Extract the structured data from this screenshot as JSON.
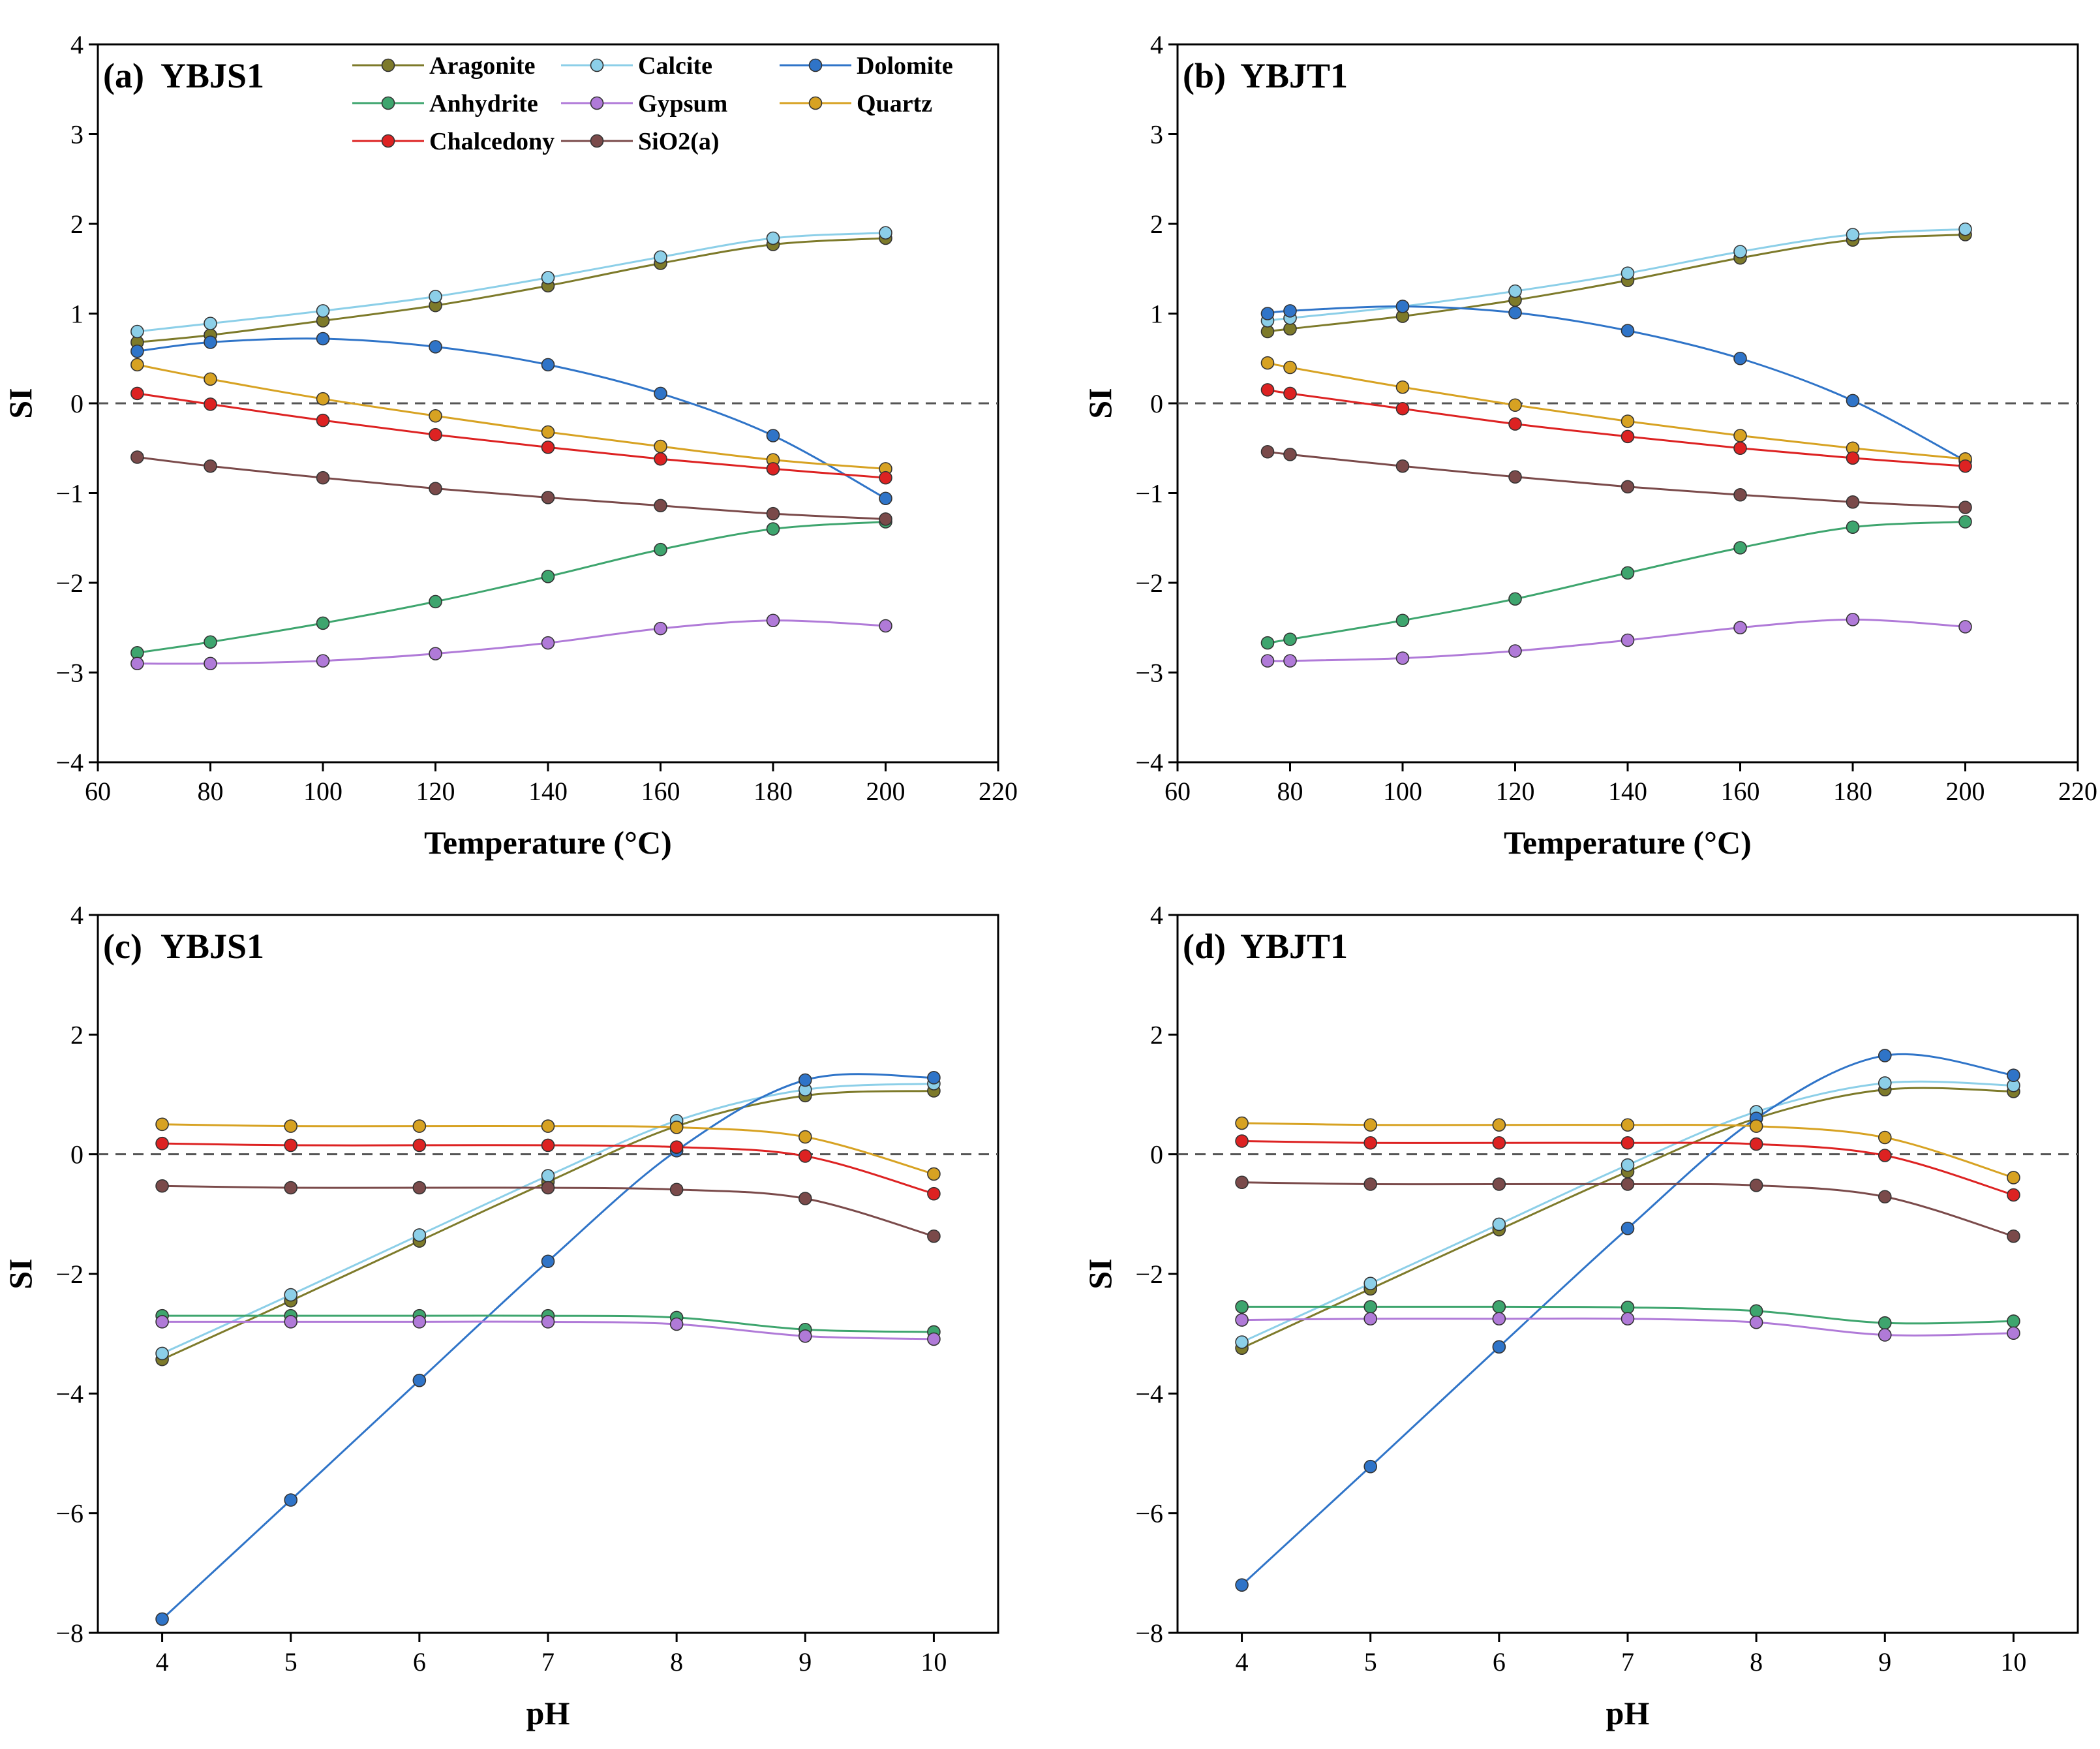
{
  "chart_data": [
    {
      "type": "line",
      "panel_label": "(a)",
      "title": "YBJS1",
      "xlabel": "Temperature (°C)",
      "ylabel": "SI",
      "xlim": [
        60,
        220
      ],
      "ylim": [
        -4,
        4
      ],
      "xticks": [
        60,
        80,
        100,
        120,
        140,
        160,
        180,
        200,
        220
      ],
      "yticks": [
        -4,
        -3,
        -2,
        -1,
        0,
        1,
        2,
        3,
        4
      ],
      "x": [
        67,
        80,
        100,
        120,
        140,
        160,
        180,
        200
      ],
      "reference_line": 0,
      "legend_position": "top",
      "series": [
        {
          "name": "Aragonite",
          "values": [
            0.68,
            0.76,
            0.92,
            1.09,
            1.31,
            1.56,
            1.77,
            1.84
          ]
        },
        {
          "name": "Calcite",
          "values": [
            0.8,
            0.89,
            1.03,
            1.19,
            1.4,
            1.63,
            1.84,
            1.9
          ]
        },
        {
          "name": "Dolomite",
          "values": [
            0.58,
            0.68,
            0.72,
            0.63,
            0.43,
            0.11,
            -0.36,
            -1.06
          ]
        },
        {
          "name": "Anhydrite",
          "values": [
            -2.78,
            -2.66,
            -2.45,
            -2.21,
            -1.93,
            -1.63,
            -1.4,
            -1.32
          ]
        },
        {
          "name": "Gypsum",
          "values": [
            -2.9,
            -2.9,
            -2.87,
            -2.79,
            -2.67,
            -2.51,
            -2.42,
            -2.48
          ]
        },
        {
          "name": "Quartz",
          "values": [
            0.43,
            0.27,
            0.05,
            -0.14,
            -0.32,
            -0.48,
            -0.63,
            -0.73
          ]
        },
        {
          "name": "Chalcedony",
          "values": [
            0.11,
            -0.01,
            -0.19,
            -0.35,
            -0.49,
            -0.62,
            -0.73,
            -0.83
          ]
        },
        {
          "name": "SiO2(a)",
          "values": [
            -0.6,
            -0.7,
            -0.83,
            -0.95,
            -1.05,
            -1.14,
            -1.23,
            -1.29
          ]
        }
      ]
    },
    {
      "type": "line",
      "panel_label": "(b)",
      "title": "YBJT1",
      "xlabel": "Temperature (°C)",
      "ylabel": "SI",
      "xlim": [
        60,
        220
      ],
      "ylim": [
        -4,
        4
      ],
      "xticks": [
        60,
        80,
        100,
        120,
        140,
        160,
        180,
        200,
        220
      ],
      "yticks": [
        -4,
        -3,
        -2,
        -1,
        0,
        1,
        2,
        3,
        4
      ],
      "x": [
        76,
        80,
        100,
        120,
        140,
        160,
        180,
        200
      ],
      "reference_line": 0,
      "series": [
        {
          "name": "Aragonite",
          "values": [
            0.8,
            0.83,
            0.97,
            1.15,
            1.37,
            1.62,
            1.82,
            1.88
          ]
        },
        {
          "name": "Calcite",
          "values": [
            0.92,
            0.95,
            1.08,
            1.25,
            1.45,
            1.69,
            1.88,
            1.94
          ]
        },
        {
          "name": "Dolomite",
          "values": [
            1.0,
            1.03,
            1.08,
            1.01,
            0.81,
            0.5,
            0.03,
            -0.64
          ]
        },
        {
          "name": "Anhydrite",
          "values": [
            -2.67,
            -2.63,
            -2.42,
            -2.18,
            -1.89,
            -1.61,
            -1.38,
            -1.32
          ]
        },
        {
          "name": "Gypsum",
          "values": [
            -2.87,
            -2.87,
            -2.84,
            -2.76,
            -2.64,
            -2.5,
            -2.41,
            -2.49
          ]
        },
        {
          "name": "Quartz",
          "values": [
            0.45,
            0.4,
            0.18,
            -0.02,
            -0.2,
            -0.36,
            -0.5,
            -0.62
          ]
        },
        {
          "name": "Chalcedony",
          "values": [
            0.15,
            0.11,
            -0.06,
            -0.23,
            -0.37,
            -0.5,
            -0.61,
            -0.7
          ]
        },
        {
          "name": "SiO2(a)",
          "values": [
            -0.54,
            -0.57,
            -0.7,
            -0.82,
            -0.93,
            -1.02,
            -1.1,
            -1.16
          ]
        }
      ]
    },
    {
      "type": "line",
      "panel_label": "(c)",
      "title": "YBJS1",
      "xlabel": "pH",
      "ylabel": "SI",
      "xlim": [
        3.5,
        10.5
      ],
      "ylim": [
        -8,
        4
      ],
      "xticks": [
        4,
        5,
        6,
        7,
        8,
        9,
        10
      ],
      "yticks": [
        -8,
        -6,
        -4,
        -2,
        0,
        2,
        4
      ],
      "x": [
        4,
        5,
        6,
        7,
        8,
        9,
        10
      ],
      "reference_line": 0,
      "series": [
        {
          "name": "Aragonite",
          "values": [
            -3.43,
            -2.45,
            -1.45,
            -0.46,
            0.47,
            0.98,
            1.06
          ]
        },
        {
          "name": "Calcite",
          "values": [
            -3.33,
            -2.35,
            -1.35,
            -0.36,
            0.56,
            1.08,
            1.18
          ]
        },
        {
          "name": "Dolomite",
          "values": [
            -7.77,
            -5.78,
            -3.78,
            -1.79,
            0.06,
            1.24,
            1.28
          ]
        },
        {
          "name": "Anhydrite",
          "values": [
            -2.7,
            -2.7,
            -2.7,
            -2.7,
            -2.73,
            -2.93,
            -2.97
          ]
        },
        {
          "name": "Gypsum",
          "values": [
            -2.8,
            -2.8,
            -2.8,
            -2.8,
            -2.84,
            -3.04,
            -3.09
          ]
        },
        {
          "name": "Quartz",
          "values": [
            0.5,
            0.47,
            0.47,
            0.47,
            0.45,
            0.29,
            -0.33
          ]
        },
        {
          "name": "Chalcedony",
          "values": [
            0.18,
            0.15,
            0.15,
            0.15,
            0.12,
            -0.03,
            -0.66
          ]
        },
        {
          "name": "SiO2(a)",
          "values": [
            -0.53,
            -0.56,
            -0.56,
            -0.56,
            -0.59,
            -0.74,
            -1.37
          ]
        }
      ]
    },
    {
      "type": "line",
      "panel_label": "(d)",
      "title": "YBJT1",
      "xlabel": "pH",
      "ylabel": "SI",
      "xlim": [
        3.5,
        10.5
      ],
      "ylim": [
        -8,
        4
      ],
      "xticks": [
        4,
        5,
        6,
        7,
        8,
        9,
        10
      ],
      "yticks": [
        -8,
        -6,
        -4,
        -2,
        0,
        2,
        4
      ],
      "x": [
        4,
        5,
        6,
        7,
        8,
        9,
        10
      ],
      "reference_line": 0,
      "series": [
        {
          "name": "Aragonite",
          "values": [
            -3.24,
            -2.25,
            -1.26,
            -0.29,
            0.6,
            1.08,
            1.05
          ]
        },
        {
          "name": "Calcite",
          "values": [
            -3.14,
            -2.16,
            -1.17,
            -0.18,
            0.71,
            1.19,
            1.15
          ]
        },
        {
          "name": "Dolomite",
          "values": [
            -7.2,
            -5.22,
            -3.22,
            -1.24,
            0.6,
            1.65,
            1.32
          ]
        },
        {
          "name": "Anhydrite",
          "values": [
            -2.55,
            -2.55,
            -2.55,
            -2.56,
            -2.62,
            -2.82,
            -2.79
          ]
        },
        {
          "name": "Gypsum",
          "values": [
            -2.77,
            -2.75,
            -2.75,
            -2.75,
            -2.81,
            -3.02,
            -2.99
          ]
        },
        {
          "name": "Quartz",
          "values": [
            0.52,
            0.49,
            0.49,
            0.49,
            0.47,
            0.28,
            -0.39
          ]
        },
        {
          "name": "Chalcedony",
          "values": [
            0.22,
            0.19,
            0.19,
            0.19,
            0.17,
            -0.02,
            -0.68
          ]
        },
        {
          "name": "SiO2(a)",
          "values": [
            -0.47,
            -0.5,
            -0.5,
            -0.5,
            -0.52,
            -0.71,
            -1.37
          ]
        }
      ]
    }
  ],
  "legend": {
    "items": [
      "Aragonite",
      "Calcite",
      "Dolomite",
      "Anhydrite",
      "Gypsum",
      "Quartz",
      "Chalcedony",
      "SiO2(a)"
    ]
  },
  "colors": {
    "Aragonite": "#7d7a2a",
    "Calcite": "#8ccfe8",
    "Dolomite": "#2f74c8",
    "Anhydrite": "#3ea56e",
    "Gypsum": "#b07ad8",
    "Quartz": "#d7a222",
    "Chalcedony": "#dd2222",
    "SiO2(a)": "#7a4a4a",
    "reference_line": "#555555",
    "axis": "#000000"
  }
}
